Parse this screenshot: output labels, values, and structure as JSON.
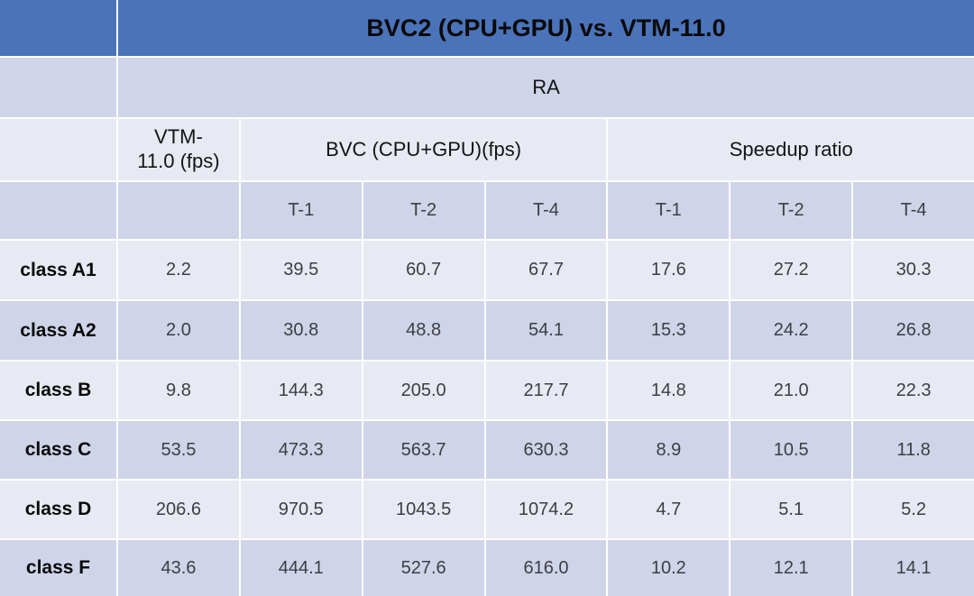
{
  "colors": {
    "header_blue": "#4b73ba",
    "band_dark": "#cfd4e8",
    "band_light": "#e8eaf3"
  },
  "table": {
    "title": "BVC2 (CPU+GPU) vs. VTM-11.0",
    "config_header": "RA",
    "vtm_col_header": "VTM-\n11.0 (fps)",
    "bvc_group_header": "BVC (CPU+GPU)(fps)",
    "speedup_group_header": "Speedup ratio",
    "thread_headers": [
      "T-1",
      "T-2",
      "T-4",
      "T-1",
      "T-2",
      "T-4"
    ],
    "rows": [
      {
        "label": "class A1",
        "values": [
          "2.2",
          "39.5",
          "60.7",
          "67.7",
          "17.6",
          "27.2",
          "30.3"
        ]
      },
      {
        "label": "class A2",
        "values": [
          "2.0",
          "30.8",
          "48.8",
          "54.1",
          "15.3",
          "24.2",
          "26.8"
        ]
      },
      {
        "label": "class B",
        "values": [
          "9.8",
          "144.3",
          "205.0",
          "217.7",
          "14.8",
          "21.0",
          "22.3"
        ]
      },
      {
        "label": "class C",
        "values": [
          "53.5",
          "473.3",
          "563.7",
          "630.3",
          "8.9",
          "10.5",
          "11.8"
        ]
      },
      {
        "label": "class D",
        "values": [
          "206.6",
          "970.5",
          "1043.5",
          "1074.2",
          "4.7",
          "5.1",
          "5.2"
        ]
      },
      {
        "label": "class F",
        "values": [
          "43.6",
          "444.1",
          "527.6",
          "616.0",
          "10.2",
          "12.1",
          "14.1"
        ]
      }
    ]
  },
  "chart_data": {
    "type": "table",
    "title": "BVC2 (CPU+GPU) vs. VTM-11.0",
    "subtitle": "RA",
    "column_groups": [
      "VTM-11.0 (fps)",
      "BVC (CPU+GPU)(fps)",
      "Speedup ratio"
    ],
    "columns": [
      "class",
      "VTM-11.0 (fps)",
      "BVC fps T-1",
      "BVC fps T-2",
      "BVC fps T-4",
      "Speedup T-1",
      "Speedup T-2",
      "Speedup T-4"
    ],
    "rows": [
      [
        "class A1",
        2.2,
        39.5,
        60.7,
        67.7,
        17.6,
        27.2,
        30.3
      ],
      [
        "class A2",
        2.0,
        30.8,
        48.8,
        54.1,
        15.3,
        24.2,
        26.8
      ],
      [
        "class B",
        9.8,
        144.3,
        205.0,
        217.7,
        14.8,
        21.0,
        22.3
      ],
      [
        "class C",
        53.5,
        473.3,
        563.7,
        630.3,
        8.9,
        10.5,
        11.8
      ],
      [
        "class D",
        206.6,
        970.5,
        1043.5,
        1074.2,
        4.7,
        5.1,
        5.2
      ],
      [
        "class F",
        43.6,
        444.1,
        527.6,
        616.0,
        10.2,
        12.1,
        14.1
      ]
    ]
  }
}
